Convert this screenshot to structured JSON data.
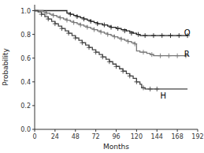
{
  "chart_data": {
    "type": "step",
    "xlabel": "Months",
    "ylabel": "Probability",
    "xlim": [
      0,
      192
    ],
    "ylim": [
      0.0,
      1.05
    ],
    "xticks": [
      0,
      24,
      48,
      72,
      96,
      120,
      144,
      168,
      192
    ],
    "yticks": [
      {
        "value": 0.0,
        "label": "0.0"
      },
      0.2,
      0.4,
      0.6,
      0.8,
      {
        "value": 1.0,
        "label": "1.0"
      }
    ],
    "grid": false,
    "marker": "plus",
    "series": [
      {
        "color": "#222222",
        "x": [
          0,
          36,
          38,
          42,
          46,
          50,
          54,
          58,
          62,
          66,
          70,
          74,
          80,
          86,
          90,
          96,
          102,
          108,
          112,
          116,
          120,
          124,
          180
        ],
        "values": [
          1.0,
          1.0,
          0.98,
          0.97,
          0.96,
          0.95,
          0.94,
          0.93,
          0.92,
          0.91,
          0.9,
          0.89,
          0.88,
          0.87,
          0.86,
          0.85,
          0.84,
          0.83,
          0.82,
          0.81,
          0.8,
          0.79,
          0.79
        ],
        "censor_x": [
          42,
          50,
          58,
          66,
          74,
          82,
          90,
          98,
          106,
          114,
          122,
          130,
          140,
          150,
          160,
          170,
          180
        ],
        "censor_y": [
          0.97,
          0.95,
          0.93,
          0.91,
          0.89,
          0.88,
          0.86,
          0.85,
          0.83,
          0.81,
          0.8,
          0.79,
          0.79,
          0.79,
          0.79,
          0.79,
          0.79
        ]
      },
      {
        "color": "#777777",
        "x": [
          0,
          10,
          14,
          18,
          22,
          26,
          30,
          34,
          38,
          42,
          46,
          50,
          54,
          58,
          62,
          66,
          70,
          74,
          78,
          82,
          86,
          90,
          94,
          98,
          102,
          106,
          110,
          114,
          118,
          120,
          124,
          128,
          132,
          136,
          140,
          144,
          180
        ],
        "values": [
          1.0,
          0.99,
          0.98,
          0.97,
          0.96,
          0.95,
          0.94,
          0.93,
          0.92,
          0.91,
          0.9,
          0.89,
          0.88,
          0.87,
          0.86,
          0.85,
          0.84,
          0.83,
          0.82,
          0.81,
          0.8,
          0.79,
          0.78,
          0.77,
          0.76,
          0.75,
          0.74,
          0.73,
          0.72,
          0.66,
          0.65,
          0.65,
          0.64,
          0.63,
          0.62,
          0.62,
          0.62
        ],
        "censor_x": [
          14,
          22,
          30,
          38,
          46,
          54,
          62,
          70,
          78,
          86,
          94,
          102,
          110,
          118,
          128,
          138,
          148,
          158,
          168,
          178
        ],
        "censor_y": [
          0.98,
          0.96,
          0.94,
          0.92,
          0.9,
          0.88,
          0.86,
          0.84,
          0.82,
          0.8,
          0.78,
          0.76,
          0.74,
          0.72,
          0.65,
          0.63,
          0.62,
          0.62,
          0.62,
          0.62
        ]
      },
      {
        "color": "#444444",
        "x": [
          0,
          4,
          8,
          12,
          16,
          20,
          24,
          28,
          32,
          36,
          40,
          44,
          48,
          52,
          56,
          60,
          64,
          68,
          72,
          76,
          80,
          84,
          88,
          92,
          96,
          100,
          104,
          108,
          112,
          116,
          120,
          124,
          126,
          130,
          134,
          180
        ],
        "values": [
          1.0,
          0.99,
          0.97,
          0.95,
          0.93,
          0.91,
          0.89,
          0.87,
          0.85,
          0.83,
          0.81,
          0.79,
          0.77,
          0.75,
          0.73,
          0.71,
          0.69,
          0.67,
          0.65,
          0.63,
          0.61,
          0.59,
          0.57,
          0.55,
          0.53,
          0.51,
          0.49,
          0.47,
          0.45,
          0.43,
          0.4,
          0.38,
          0.35,
          0.34,
          0.34,
          0.34
        ],
        "censor_x": [
          8,
          16,
          24,
          32,
          40,
          48,
          56,
          64,
          72,
          80,
          88,
          96,
          104,
          112,
          120,
          128,
          136,
          144
        ],
        "censor_y": [
          0.97,
          0.93,
          0.89,
          0.85,
          0.81,
          0.77,
          0.73,
          0.69,
          0.65,
          0.61,
          0.57,
          0.53,
          0.49,
          0.45,
          0.4,
          0.35,
          0.34,
          0.34
        ]
      }
    ],
    "annotations": [
      {
        "text": "O",
        "x": 176,
        "y": 0.81
      },
      {
        "text": "R",
        "x": 176,
        "y": 0.63
      },
      {
        "text": "H",
        "x": 148,
        "y": 0.28
      }
    ]
  }
}
